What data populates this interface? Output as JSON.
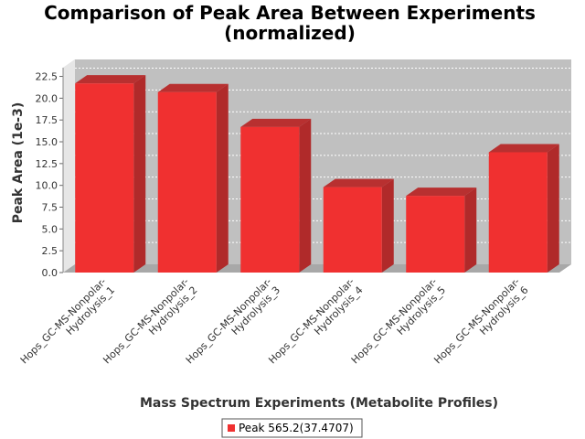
{
  "chart_data": {
    "type": "bar",
    "title_line1": "Comparison of Peak Area Between Experiments",
    "title_line2": "(normalized)",
    "xlabel": "Mass Spectrum Experiments (Metabolite Profiles)",
    "ylabel": "Peak Area (1e-3)",
    "categories": [
      [
        "Hops_GC-MS-Nonpolar-",
        "Hydrolysis_1"
      ],
      [
        "Hops_GC-MS-Nonpolar-",
        "Hydrolysis_2"
      ],
      [
        "Hops_GC-MS-Nonpolar-",
        "Hydrolysis_3"
      ],
      [
        "Hops_GC-MS-Nonpolar-",
        "Hydrolysis_4"
      ],
      [
        "Hops_GC-MS-Nonpolar-",
        "Hydrolysis_5"
      ],
      [
        "Hops_GC-MS-Nonpolar-",
        "Hydrolysis_6"
      ]
    ],
    "series": [
      {
        "name": "Peak 565.2(37.4707)",
        "values": [
          21.7,
          20.7,
          16.7,
          9.8,
          8.8,
          13.8
        ]
      }
    ],
    "ylim": [
      0,
      23.5
    ],
    "yticks": [
      "0.0",
      "2.5",
      "5.0",
      "7.5",
      "10.0",
      "12.5",
      "15.0",
      "17.5",
      "20.0",
      "22.5"
    ],
    "grid": true,
    "legend_position": "bottom",
    "colors": {
      "bar": "#f03030",
      "plot_bg": "#c0c0c0"
    }
  }
}
